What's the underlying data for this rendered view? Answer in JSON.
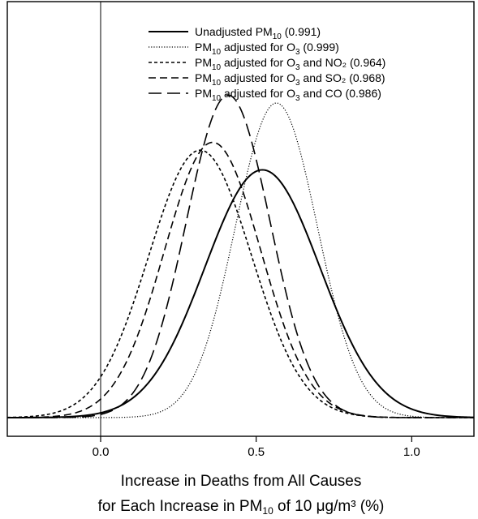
{
  "chart_data": {
    "type": "line",
    "title": "",
    "xlabel": {
      "line1": "Increase in Deaths from All Causes",
      "line2_prefix": "for Each Increase in PM",
      "line2_sub": "10",
      "line2_suffix": " of 10 μg/m³ (%)"
    },
    "ylabel": "",
    "xlim": [
      -0.3,
      1.2
    ],
    "ylim": [
      0,
      1.0
    ],
    "x_ticks": [
      0.0,
      0.5,
      1.0
    ],
    "x_tick_labels": [
      "0.0",
      "0.5",
      "1.0"
    ],
    "reference_line_x": 0.0,
    "legend_position": "top-right",
    "grid": false,
    "series": [
      {
        "name": "Unadjusted PM10 (0.991)",
        "legend": {
          "pre": "Unadjusted PM",
          "sub1": "10",
          "mid": " (0.991)",
          "sub2": "",
          "post": ""
        },
        "mean": 0.52,
        "sd": 0.185,
        "peak": 0.63,
        "dash": "",
        "stroke_width": 2.0
      },
      {
        "name": "PM10 adjusted for O3 (0.999)",
        "legend": {
          "pre": "PM",
          "sub1": "10",
          "mid": " adjusted for O",
          "sub2": "3",
          "post": " (0.999)"
        },
        "mean": 0.565,
        "sd": 0.132,
        "peak": 0.8,
        "dash": "1.2 2",
        "stroke_width": 1.2
      },
      {
        "name": "PM10 adjusted for O3 and NO2 (0.964)",
        "legend": {
          "pre": "PM",
          "sub1": "10",
          "mid": " adjusted for O",
          "sub2": "3",
          "post": " and NO₂ (0.964)"
        },
        "mean": 0.32,
        "sd": 0.165,
        "peak": 0.68,
        "dash": "4 3",
        "stroke_width": 1.6
      },
      {
        "name": "PM10 adjusted for O3 and SO2 (0.968)",
        "legend": {
          "pre": "PM",
          "sub1": "10",
          "mid": " adjusted for O",
          "sub2": "3",
          "post": " and SO₂ (0.968)"
        },
        "mean": 0.36,
        "sd": 0.155,
        "peak": 0.7,
        "dash": "9 5",
        "stroke_width": 1.6
      },
      {
        "name": "PM10 adjusted for O3 and CO (0.986)",
        "legend": {
          "pre": "PM",
          "sub1": "10",
          "mid": " adjusted for O",
          "sub2": "3",
          "post": " and CO (0.986)"
        },
        "mean": 0.41,
        "sd": 0.135,
        "peak": 0.82,
        "dash": "16 7",
        "stroke_width": 1.6
      }
    ]
  }
}
